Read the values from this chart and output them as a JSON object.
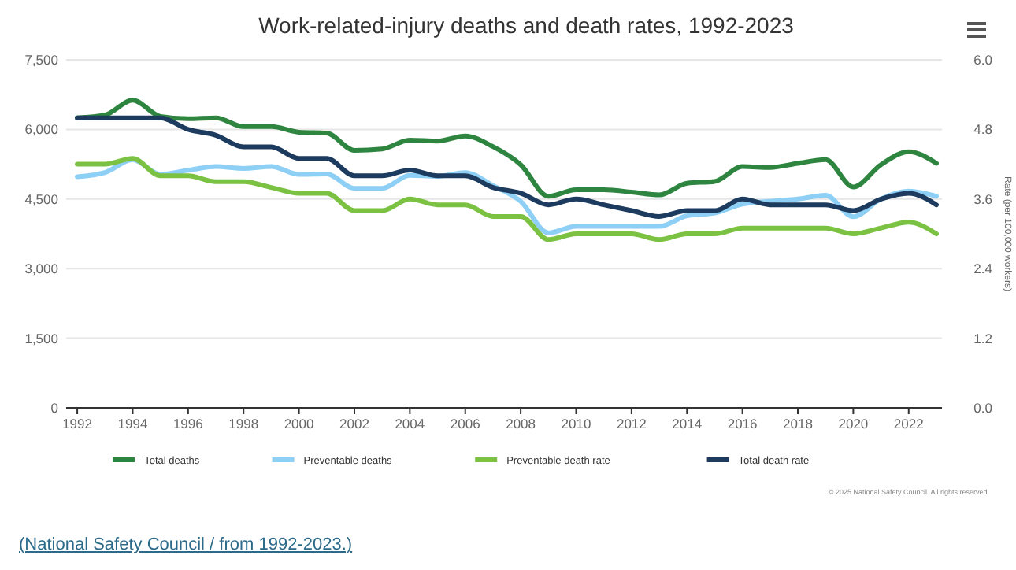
{
  "chart_data": {
    "type": "line",
    "title": "Work-related-injury deaths and death rates, 1992-2023",
    "y2label": "Rate (per 100,000 workers)",
    "x": [
      1992,
      1993,
      1994,
      1995,
      1996,
      1997,
      1998,
      1999,
      2000,
      2001,
      2002,
      2003,
      2004,
      2005,
      2006,
      2007,
      2008,
      2009,
      2010,
      2011,
      2012,
      2013,
      2014,
      2015,
      2016,
      2017,
      2018,
      2019,
      2020,
      2021,
      2022,
      2023
    ],
    "series": [
      {
        "name": "Total deaths",
        "color": "#2e8540",
        "values": [
          6250,
          6310,
          6630,
          6280,
          6230,
          6250,
          6060,
          6060,
          5940,
          5920,
          5550,
          5580,
          5770,
          5750,
          5860,
          5630,
          5240,
          4560,
          4700,
          4700,
          4650,
          4590,
          4840,
          4880,
          5200,
          5180,
          5270,
          5350,
          4760,
          5240,
          5520,
          5270
        ]
      },
      {
        "name": "Preventable deaths",
        "color": "#8ecff5",
        "values": [
          4980,
          5070,
          5350,
          5030,
          5120,
          5200,
          5160,
          5200,
          5030,
          5040,
          4730,
          4730,
          5010,
          4990,
          5070,
          4790,
          4450,
          3770,
          3910,
          3910,
          3910,
          3910,
          4140,
          4200,
          4390,
          4450,
          4500,
          4580,
          4120,
          4500,
          4670,
          4560
        ]
      },
      {
        "name": "Preventable death rate",
        "color": "#7cc242",
        "axis": "y2",
        "values": [
          4.2,
          4.2,
          4.3,
          4.0,
          4.0,
          3.9,
          3.9,
          3.8,
          3.7,
          3.7,
          3.4,
          3.4,
          3.6,
          3.5,
          3.5,
          3.3,
          3.3,
          2.9,
          3.0,
          3.0,
          3.0,
          2.9,
          3.0,
          3.0,
          3.1,
          3.1,
          3.1,
          3.1,
          3.0,
          3.1,
          3.2,
          3.0
        ]
      },
      {
        "name": "Total death rate",
        "color": "#1c3b5e",
        "axis": "y2",
        "values": [
          5.0,
          5.0,
          5.0,
          5.0,
          4.8,
          4.7,
          4.5,
          4.5,
          4.3,
          4.3,
          4.0,
          4.0,
          4.1,
          4.0,
          4.0,
          3.8,
          3.7,
          3.5,
          3.6,
          3.5,
          3.4,
          3.3,
          3.4,
          3.4,
          3.6,
          3.5,
          3.5,
          3.5,
          3.4,
          3.6,
          3.7,
          3.5
        ]
      }
    ],
    "xlim": [
      1991.6,
      2023.2
    ],
    "xticks": [
      1992,
      1994,
      1996,
      1998,
      2000,
      2002,
      2004,
      2006,
      2008,
      2010,
      2012,
      2014,
      2016,
      2018,
      2020,
      2022
    ],
    "ylim": [
      0,
      7500
    ],
    "yticks": [
      {
        "value": 0,
        "label": "0"
      },
      {
        "value": 1500,
        "label": "1,500"
      },
      {
        "value": 3000,
        "label": "3,000"
      },
      {
        "value": 4500,
        "label": "4,500"
      },
      {
        "value": 6000,
        "label": "6,000"
      },
      {
        "value": 7500,
        "label": "7,500"
      }
    ],
    "y2lim": [
      0,
      6
    ],
    "y2ticks": [
      {
        "value": 0,
        "label": "0.0"
      },
      {
        "value": 1.2,
        "label": "1.2"
      },
      {
        "value": 2.4,
        "label": "2.4"
      },
      {
        "value": 3.6,
        "label": "3.6"
      },
      {
        "value": 4.8,
        "label": "4.8"
      },
      {
        "value": 6,
        "label": "6.0"
      }
    ],
    "grid": "y",
    "legend": "bottom",
    "marker": "none",
    "line_style": "solid",
    "annotations": [
      "© 2025 National Safety Council. All rights reserved.",
      "(National Safety Council / from 1992-2023.)"
    ]
  }
}
